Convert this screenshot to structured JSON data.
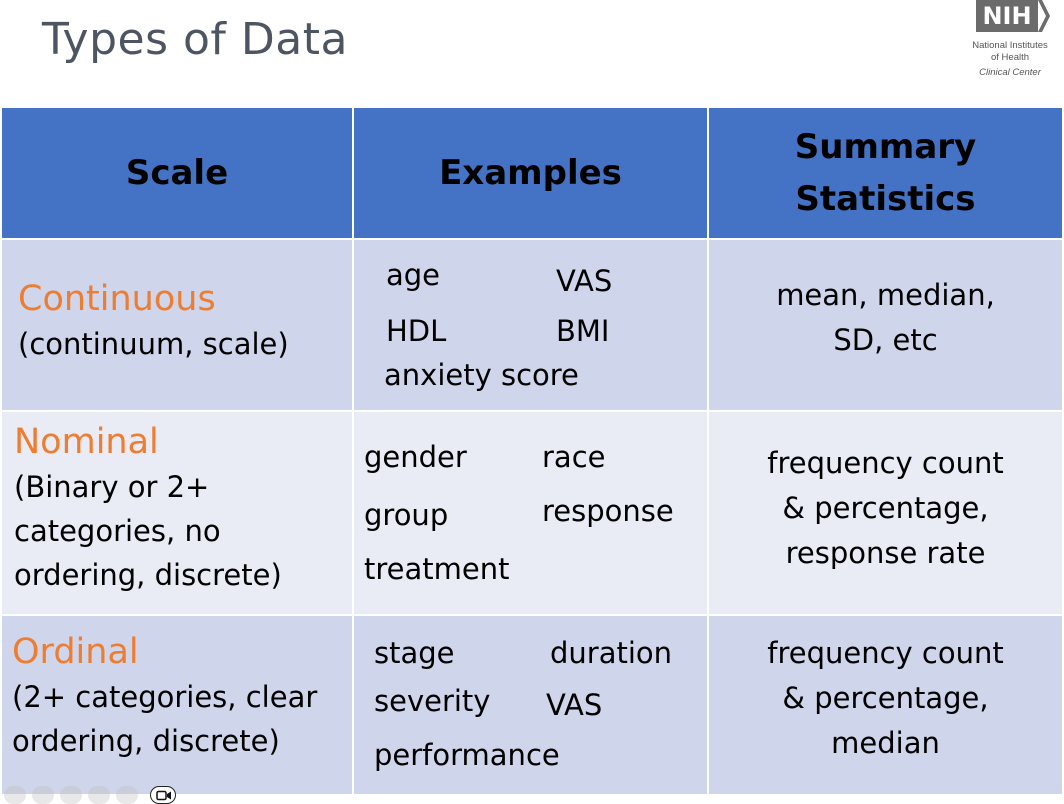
{
  "slide": {
    "title": "Types of Data"
  },
  "logo": {
    "mark": "NIH",
    "line1": "National Institutes",
    "line2": "of Health",
    "line3": "Clinical Center"
  },
  "table": {
    "headers": {
      "scale": "Scale",
      "examples": "Examples",
      "summary_line1": "Summary",
      "summary_line2": "Statistics"
    },
    "rows": [
      {
        "name": "Continuous",
        "desc": [
          "(continuum, scale)"
        ],
        "examples": [
          "age",
          "VAS",
          "HDL",
          "BMI",
          "anxiety score"
        ],
        "summary": [
          "mean, median,",
          "SD, etc"
        ]
      },
      {
        "name": "Nominal",
        "desc": [
          "(Binary or 2+",
          "categories, no",
          "ordering, discrete)"
        ],
        "examples": [
          "gender",
          "race",
          "group",
          "response",
          "treatment"
        ],
        "summary": [
          "frequency count",
          "& percentage,",
          "response rate"
        ]
      },
      {
        "name": "Ordinal",
        "desc": [
          "(2+ categories, clear",
          "ordering, discrete)"
        ],
        "examples": [
          "stage",
          "duration",
          "severity",
          "VAS",
          "performance"
        ],
        "summary": [
          "frequency count",
          "& percentage,",
          "median"
        ]
      }
    ]
  },
  "icons": {
    "video": "video-camera-icon"
  },
  "colors": {
    "header": "#4472c4",
    "row_dark": "#cfd5ea",
    "row_light": "#e9ebf5",
    "scale_name": "#ed7d31"
  }
}
